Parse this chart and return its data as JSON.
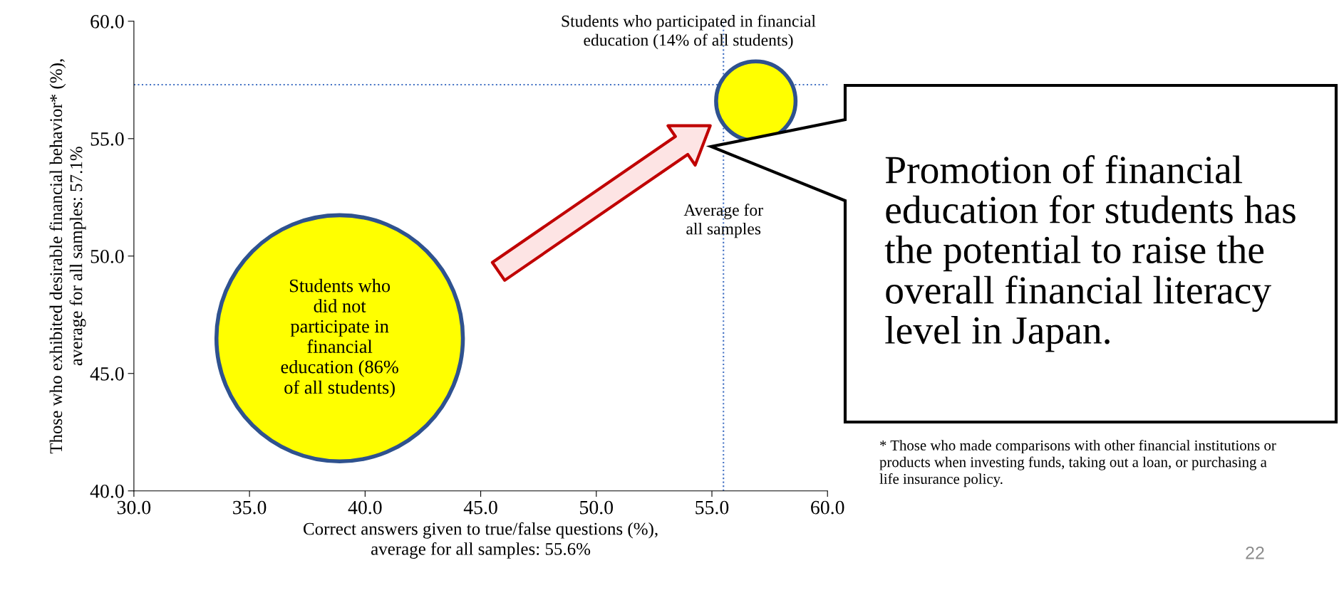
{
  "chart_data": {
    "type": "bubble",
    "xlabel": "Correct answers given to true/false questions (%),\naverage for all samples: 55.6%",
    "ylabel": "Those who exhibited desirable financial behavior* (%),\naverage for all samples: 57.1%",
    "x": [
      38.9,
      56.9
    ],
    "series": [
      {
        "color": "#ffff00",
        "values": [
          46.5,
          56.6
        ],
        "sizes": [
          1,
          0.104
        ]
      }
    ],
    "xlim": [
      30,
      60
    ],
    "ylim": [
      40,
      60
    ],
    "xticks": [
      {
        "value": 30,
        "label": "30.0"
      },
      {
        "value": 35,
        "label": "35.0"
      },
      {
        "value": 40,
        "label": "40.0"
      },
      {
        "value": 45,
        "label": "45.0"
      },
      {
        "value": 50,
        "label": "50.0"
      },
      {
        "value": 55,
        "label": "55.0"
      },
      {
        "value": 60,
        "label": "60.0"
      }
    ],
    "yticks": [
      {
        "value": 40,
        "label": "40.0"
      },
      {
        "value": 45,
        "label": "45.0"
      },
      {
        "value": 50,
        "label": "50.0"
      },
      {
        "value": 55,
        "label": "55.0"
      },
      {
        "value": 60,
        "label": "60.0"
      }
    ],
    "ref_lines": [
      {
        "axis": "x",
        "value": 55.5,
        "label": "Average for\nall samples",
        "color": "#4472c4",
        "line_style": "dotted"
      },
      {
        "axis": "y",
        "value": 57.3,
        "color": "#4472c4",
        "line_style": "dotted"
      }
    ],
    "annotations": [
      {
        "text": "Students who\ndid not\nparticipate in\nfinancial\neducation (86%\nof all students)",
        "x": 38.9,
        "y": 46.5
      },
      "Students who participated in financial\neducation (14% of all students)",
      "Promotion of financial education for students has the potential to raise the overall financial literacy level in Japan.",
      "* Those who made comparisons with other financial institutions or products when investing funds, taking out a loan, or purchasing a life insurance policy.",
      "22"
    ],
    "grid": false
  }
}
